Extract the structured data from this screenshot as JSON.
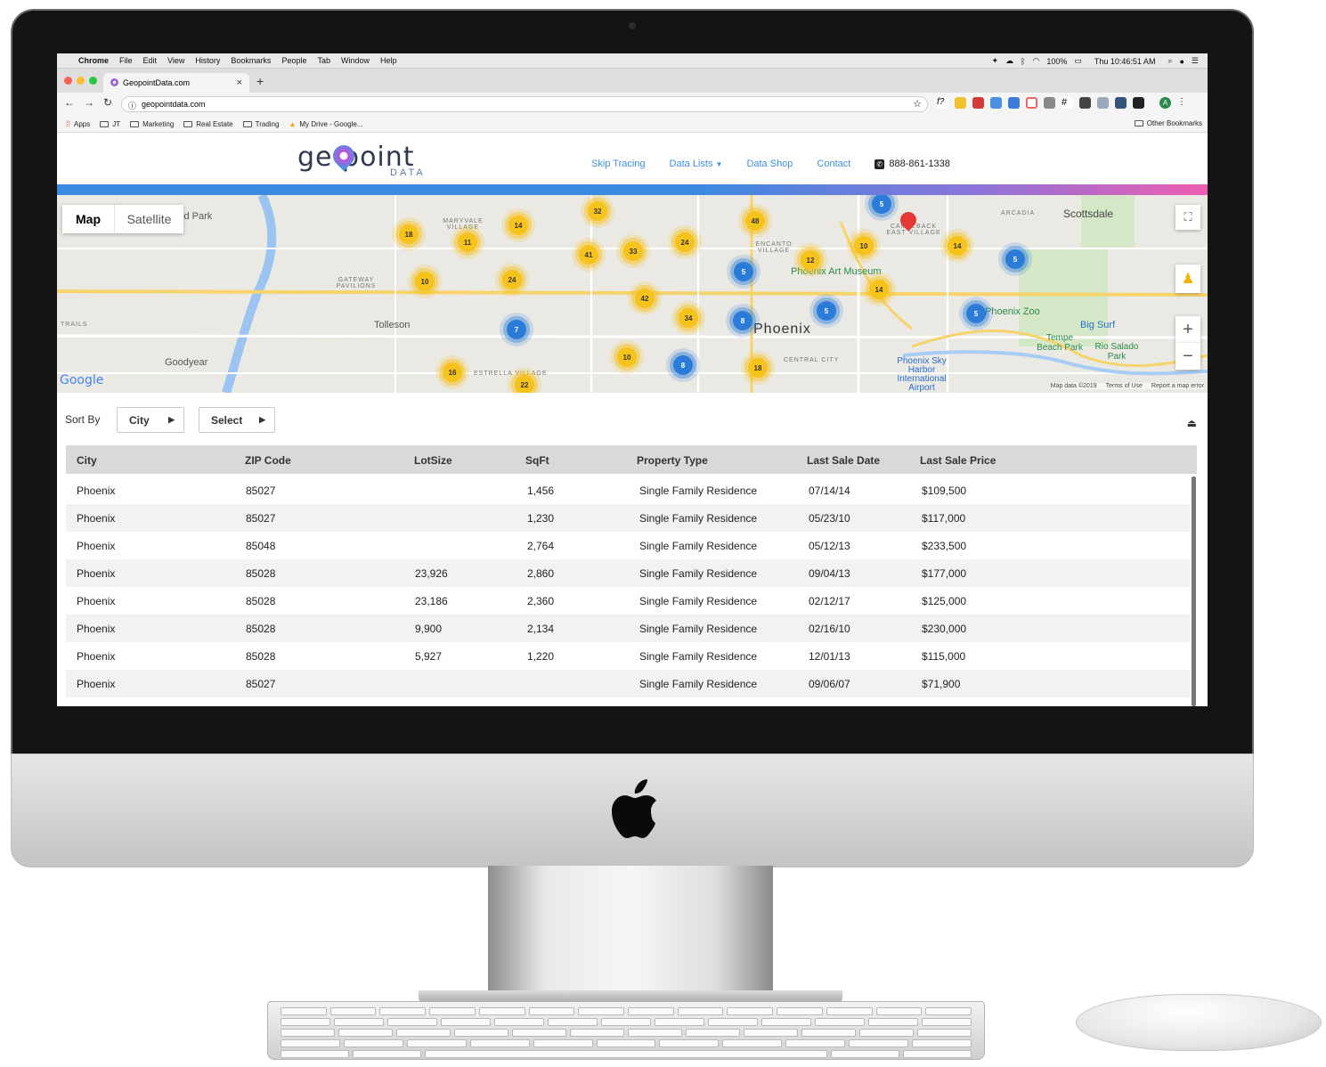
{
  "menubar": {
    "apple": "",
    "app": "Chrome",
    "items": [
      "File",
      "Edit",
      "View",
      "History",
      "Bookmarks",
      "People",
      "Tab",
      "Window",
      "Help"
    ],
    "battery": "100%",
    "clock": "Thu 10:46:51 AM"
  },
  "browser": {
    "tab_title": "GeopointData.com",
    "url": "geopointdata.com",
    "bookmarks": [
      "Apps",
      "JT",
      "Marketing",
      "Real Estate",
      "Trading",
      "My Drive - Google..."
    ],
    "other_bookmarks": "Other Bookmarks",
    "profile_initial": "A"
  },
  "site": {
    "logo_main": "ge point",
    "logo_sub": "DATA",
    "nav": [
      "Skip Tracing",
      "Data Lists",
      "Data Shop",
      "Contact"
    ],
    "phone": "888-861-1338",
    "colors": {
      "link": "#3d8ede",
      "bar_start": "#3a8ae0",
      "bar_end": "#ee5db0"
    }
  },
  "map": {
    "type_map": "Map",
    "type_satellite": "Satellite",
    "places": {
      "scottsdale": "Scottsdale",
      "arcadia": "ARCADIA",
      "maryvale": "MARYVALE VILLAGE",
      "encanto": "ENCANTO VILLAGE",
      "gateway": "GATEWAY PAVILIONS",
      "tolleson": "Tolleson",
      "phoenix": "Phoenix",
      "art_museum": "Phoenix Art Museum",
      "camelback": "CAMELBACK EAST VILLAGE",
      "zoo": "Phoenix Zoo",
      "big_surf": "Big Surf",
      "tempe_beach": "Tempe Beach Park",
      "rio_salado": "Rio Salado Park",
      "goodyear": "Goodyear",
      "estrella": "ESTRELLA VILLAGE",
      "central_city": "CENTRAL CITY",
      "sky_harbor": "Phoenix Sky Harbor International Airport",
      "trails": "TRAILS",
      "park": "ld Park"
    },
    "clusters": [
      {
        "n": "18"
      },
      {
        "n": "11"
      },
      {
        "n": "14"
      },
      {
        "n": "32"
      },
      {
        "n": "48"
      },
      {
        "n": "10"
      },
      {
        "n": "41"
      },
      {
        "n": "33"
      },
      {
        "n": "24"
      },
      {
        "n": "12"
      },
      {
        "n": "10"
      },
      {
        "n": "14"
      },
      {
        "n": "24"
      },
      {
        "n": "42"
      },
      {
        "n": "14"
      },
      {
        "n": "34"
      },
      {
        "n": "16"
      },
      {
        "n": "22"
      },
      {
        "n": "10"
      },
      {
        "n": "18"
      },
      {
        "n": "5"
      },
      {
        "n": "5"
      },
      {
        "n": "8"
      },
      {
        "n": "5"
      },
      {
        "n": "5"
      },
      {
        "n": "7"
      },
      {
        "n": "8"
      },
      {
        "n": "5"
      }
    ],
    "attribution": [
      "Map data ©2019",
      "Terms of Use",
      "Report a map error"
    ],
    "google": "Google"
  },
  "sort": {
    "label": "Sort By",
    "field": "City",
    "order": "Select"
  },
  "table": {
    "headers": [
      "City",
      "ZIP Code",
      "LotSize",
      "SqFt",
      "Property Type",
      "Last Sale Date",
      "Last Sale Price"
    ],
    "rows": [
      [
        "Phoenix",
        "85027",
        "",
        "1,456",
        "Single Family Residence",
        "07/14/14",
        "$109,500"
      ],
      [
        "Phoenix",
        "85027",
        "",
        "1,230",
        "Single Family Residence",
        "05/23/10",
        "$117,000"
      ],
      [
        "Phoenix",
        "85048",
        "",
        "2,764",
        "Single Family Residence",
        "05/12/13",
        "$233,500"
      ],
      [
        "Phoenix",
        "85028",
        "23,926",
        "2,860",
        "Single Family Residence",
        "09/04/13",
        "$177,000"
      ],
      [
        "Phoenix",
        "85028",
        "23,186",
        "2,360",
        "Single Family Residence",
        "02/12/17",
        "$125,000"
      ],
      [
        "Phoenix",
        "85028",
        "9,900",
        "2,134",
        "Single Family Residence",
        "02/16/10",
        "$230,000"
      ],
      [
        "Phoenix",
        "85028",
        "5,927",
        "1,220",
        "Single Family Residence",
        "12/01/13",
        "$115,000"
      ],
      [
        "Phoenix",
        "85027",
        "",
        "",
        "Single Family Residence",
        "09/06/07",
        "$71,900"
      ]
    ]
  }
}
